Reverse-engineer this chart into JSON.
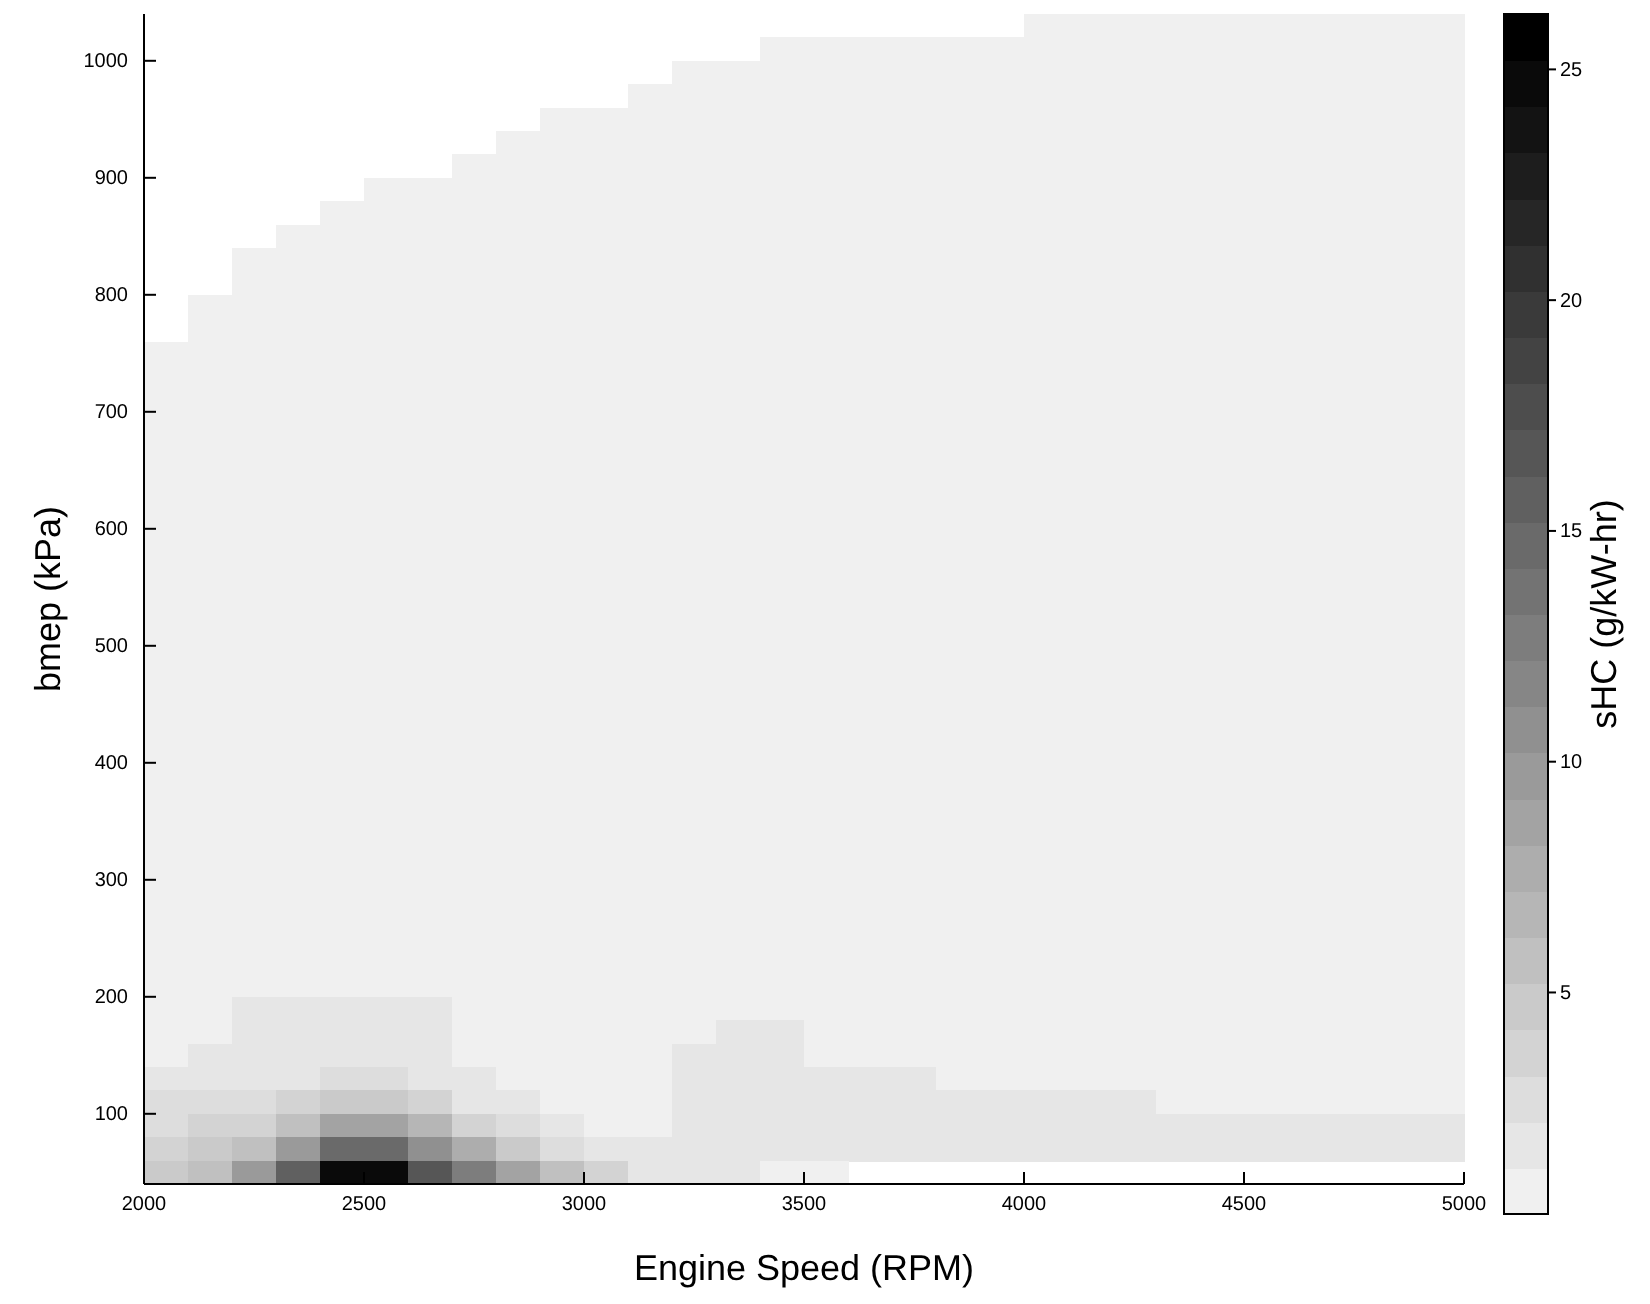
{
  "chart_data": {
    "type": "heatmap",
    "xlabel": "Engine Speed (RPM)",
    "ylabel": "bmep (kPa)",
    "clabel": "sHC (g/kW-hr)",
    "x": [
      2050,
      2150,
      2250,
      2350,
      2450,
      2550,
      2650,
      2750,
      2850,
      2950,
      3050,
      3150,
      3250,
      3350,
      3450,
      3550,
      3650,
      3750,
      3850,
      3950,
      4050,
      4150,
      4250,
      4350,
      4450,
      4550,
      4650,
      4750,
      4850,
      4950
    ],
    "y": [
      1030,
      1010,
      990,
      970,
      950,
      930,
      910,
      890,
      870,
      850,
      830,
      810,
      790,
      770,
      750,
      730,
      710,
      690,
      670,
      650,
      630,
      610,
      590,
      570,
      550,
      530,
      510,
      490,
      470,
      450,
      430,
      410,
      390,
      370,
      350,
      330,
      310,
      290,
      270,
      250,
      230,
      210,
      190,
      170,
      150,
      130,
      110,
      90,
      70,
      50
    ],
    "xlim": [
      2000,
      5000
    ],
    "xticks": [
      2000,
      2500,
      3000,
      3500,
      4000,
      4500,
      5000
    ],
    "ylim": [
      40,
      1040
    ],
    "yticks": [
      100,
      200,
      300,
      400,
      500,
      600,
      700,
      800,
      900,
      1000
    ],
    "clim": [
      0.2,
      26.2
    ],
    "cticks": [
      5,
      10,
      15,
      20,
      25
    ],
    "cells": [
      [
        null,
        null,
        null,
        null,
        null,
        null,
        null,
        null,
        null,
        null,
        null,
        null,
        null,
        null,
        null,
        null,
        null,
        null,
        null,
        null,
        0.5,
        0.5,
        0.5,
        0.5,
        0.5,
        0.5,
        0.5,
        0.5,
        0.5,
        0.5
      ],
      [
        null,
        null,
        null,
        null,
        null,
        null,
        null,
        null,
        null,
        null,
        null,
        null,
        null,
        null,
        0.5,
        0.5,
        0.5,
        0.5,
        0.5,
        0.5,
        0.5,
        0.5,
        0.5,
        0.5,
        0.5,
        0.5,
        0.5,
        0.5,
        0.5,
        0.5
      ],
      [
        null,
        null,
        null,
        null,
        null,
        null,
        null,
        null,
        null,
        null,
        null,
        null,
        0.5,
        0.5,
        0.5,
        0.5,
        0.5,
        0.5,
        0.5,
        0.5,
        0.5,
        0.5,
        0.5,
        0.5,
        0.5,
        0.5,
        0.5,
        0.5,
        0.5,
        0.5
      ],
      [
        null,
        null,
        null,
        null,
        null,
        null,
        null,
        null,
        null,
        null,
        null,
        0.5,
        0.5,
        0.5,
        0.5,
        0.5,
        0.5,
        0.5,
        0.5,
        0.5,
        0.5,
        0.5,
        0.5,
        0.5,
        0.5,
        0.5,
        0.5,
        0.5,
        0.5,
        0.5
      ],
      [
        null,
        null,
        null,
        null,
        null,
        null,
        null,
        null,
        null,
        0.5,
        0.5,
        0.5,
        0.5,
        0.5,
        0.5,
        0.5,
        0.5,
        0.5,
        0.5,
        0.5,
        0.5,
        0.5,
        0.5,
        0.5,
        0.5,
        0.5,
        0.5,
        0.5,
        0.5,
        0.5
      ],
      [
        null,
        null,
        null,
        null,
        null,
        null,
        null,
        null,
        0.5,
        0.5,
        0.5,
        0.5,
        0.5,
        0.5,
        0.5,
        0.5,
        0.5,
        0.5,
        0.5,
        0.5,
        0.5,
        0.5,
        0.5,
        0.5,
        0.5,
        0.5,
        0.5,
        0.5,
        0.5,
        0.5
      ],
      [
        null,
        null,
        null,
        null,
        null,
        null,
        null,
        0.5,
        0.5,
        0.5,
        0.5,
        0.5,
        0.5,
        0.5,
        0.5,
        0.5,
        0.5,
        0.5,
        0.5,
        0.5,
        0.5,
        0.5,
        0.5,
        0.5,
        0.5,
        0.5,
        0.5,
        0.5,
        0.5,
        0.5
      ],
      [
        null,
        null,
        null,
        null,
        null,
        0.5,
        0.5,
        0.5,
        0.5,
        0.5,
        0.5,
        0.5,
        0.5,
        0.5,
        0.5,
        0.5,
        0.5,
        0.5,
        0.5,
        0.5,
        0.5,
        0.5,
        0.5,
        0.5,
        0.5,
        0.5,
        0.5,
        0.5,
        0.5,
        0.5
      ],
      [
        null,
        null,
        null,
        null,
        0.5,
        0.5,
        0.5,
        0.5,
        0.5,
        0.5,
        0.5,
        0.5,
        0.5,
        0.5,
        0.5,
        0.5,
        0.5,
        0.5,
        0.5,
        0.5,
        0.5,
        0.5,
        0.5,
        0.5,
        0.5,
        0.5,
        0.5,
        0.5,
        0.5,
        0.5
      ],
      [
        null,
        null,
        null,
        0.5,
        0.5,
        0.5,
        0.5,
        0.5,
        0.5,
        0.5,
        0.5,
        0.5,
        0.5,
        0.5,
        0.5,
        0.5,
        0.5,
        0.5,
        0.5,
        0.5,
        0.5,
        0.5,
        0.5,
        0.5,
        0.5,
        0.5,
        0.5,
        0.5,
        0.5,
        0.5
      ],
      [
        null,
        null,
        0.5,
        0.5,
        0.5,
        0.5,
        0.5,
        0.5,
        0.5,
        0.5,
        0.5,
        0.5,
        0.5,
        0.5,
        0.5,
        0.5,
        0.5,
        0.5,
        0.5,
        0.5,
        0.5,
        0.5,
        0.5,
        0.5,
        0.5,
        0.5,
        0.5,
        0.5,
        0.5,
        0.5
      ],
      [
        null,
        null,
        0.5,
        0.5,
        0.5,
        0.5,
        0.5,
        0.5,
        0.5,
        0.5,
        0.5,
        0.5,
        0.5,
        0.5,
        0.5,
        0.5,
        0.5,
        0.5,
        0.5,
        0.5,
        0.5,
        0.5,
        0.5,
        0.5,
        0.5,
        0.5,
        0.5,
        0.5,
        0.5,
        0.5
      ],
      [
        null,
        0.5,
        0.5,
        0.5,
        0.5,
        0.5,
        0.5,
        0.5,
        0.5,
        0.5,
        0.5,
        0.5,
        0.5,
        0.5,
        0.5,
        0.5,
        0.5,
        0.5,
        0.5,
        0.5,
        0.5,
        0.5,
        0.5,
        0.5,
        0.5,
        0.5,
        0.5,
        0.5,
        0.5,
        0.5
      ],
      [
        null,
        0.5,
        0.5,
        0.5,
        0.5,
        0.5,
        0.5,
        0.5,
        0.5,
        0.5,
        0.5,
        0.5,
        0.5,
        0.5,
        0.5,
        0.5,
        0.5,
        0.5,
        0.5,
        0.5,
        0.5,
        0.5,
        0.5,
        0.5,
        0.5,
        0.5,
        0.5,
        0.5,
        0.5,
        0.5
      ],
      [
        0.5,
        0.5,
        0.5,
        0.5,
        0.5,
        0.5,
        0.5,
        0.5,
        0.5,
        0.5,
        0.5,
        0.5,
        0.5,
        0.5,
        0.5,
        0.5,
        0.5,
        0.5,
        0.5,
        0.5,
        0.5,
        0.5,
        0.5,
        0.5,
        0.5,
        0.5,
        0.5,
        0.5,
        0.5,
        0.5
      ],
      [
        0.5,
        0.5,
        0.5,
        0.5,
        0.5,
        0.5,
        0.5,
        0.5,
        0.5,
        0.5,
        0.5,
        0.5,
        0.5,
        0.5,
        0.5,
        0.5,
        0.5,
        0.5,
        0.5,
        0.5,
        0.5,
        0.5,
        0.5,
        0.5,
        0.5,
        0.5,
        0.5,
        0.5,
        0.5,
        0.5
      ],
      [
        0.5,
        0.5,
        0.5,
        0.5,
        0.5,
        0.5,
        0.5,
        0.5,
        0.5,
        0.5,
        0.5,
        0.5,
        0.5,
        0.5,
        0.5,
        0.5,
        0.5,
        0.5,
        0.5,
        0.5,
        0.5,
        0.5,
        0.5,
        0.5,
        0.5,
        0.5,
        0.5,
        0.5,
        0.5,
        0.5
      ],
      [
        0.5,
        0.5,
        0.5,
        0.5,
        0.5,
        0.5,
        0.5,
        0.5,
        0.5,
        0.5,
        0.5,
        0.5,
        0.5,
        0.5,
        0.5,
        0.5,
        0.5,
        0.5,
        0.5,
        0.5,
        0.5,
        0.5,
        0.5,
        0.5,
        0.5,
        0.5,
        0.5,
        0.5,
        0.5,
        0.5
      ],
      [
        0.5,
        0.5,
        0.5,
        0.5,
        0.5,
        0.5,
        0.5,
        0.5,
        0.5,
        0.5,
        0.5,
        0.5,
        0.5,
        0.5,
        0.5,
        0.5,
        0.5,
        0.5,
        0.5,
        0.5,
        0.5,
        0.5,
        0.5,
        0.5,
        0.5,
        0.5,
        0.5,
        0.5,
        0.5,
        0.5
      ],
      [
        0.5,
        0.5,
        0.5,
        0.5,
        0.5,
        0.5,
        0.5,
        0.5,
        0.5,
        0.5,
        0.5,
        0.5,
        0.5,
        0.5,
        0.5,
        0.5,
        0.5,
        0.5,
        0.5,
        0.5,
        0.5,
        0.5,
        0.5,
        0.5,
        0.5,
        0.5,
        0.5,
        0.5,
        0.5,
        0.5
      ],
      [
        0.5,
        0.5,
        0.5,
        0.5,
        0.5,
        0.5,
        0.5,
        0.5,
        0.5,
        0.5,
        0.5,
        0.5,
        0.5,
        0.5,
        0.5,
        0.5,
        0.5,
        0.5,
        0.5,
        0.5,
        0.5,
        0.5,
        0.5,
        0.5,
        0.5,
        0.5,
        0.5,
        0.5,
        0.5,
        0.5
      ],
      [
        0.5,
        0.5,
        0.5,
        0.5,
        0.5,
        0.5,
        0.5,
        0.5,
        0.5,
        0.5,
        0.5,
        0.5,
        0.5,
        0.5,
        0.5,
        0.5,
        0.5,
        0.5,
        0.5,
        0.5,
        0.5,
        0.5,
        0.5,
        0.5,
        0.5,
        0.5,
        0.5,
        0.5,
        0.5,
        0.5
      ],
      [
        0.5,
        0.5,
        0.5,
        0.5,
        0.5,
        0.5,
        0.5,
        0.5,
        0.5,
        0.5,
        0.5,
        0.5,
        0.5,
        0.5,
        0.5,
        0.5,
        0.5,
        0.5,
        0.5,
        0.5,
        0.5,
        0.5,
        0.5,
        0.5,
        0.5,
        0.5,
        0.5,
        0.5,
        0.5,
        0.5
      ],
      [
        0.5,
        0.5,
        0.5,
        0.5,
        0.5,
        0.5,
        0.5,
        0.5,
        0.5,
        0.5,
        0.5,
        0.5,
        0.5,
        0.5,
        0.5,
        0.5,
        0.5,
        0.5,
        0.5,
        0.5,
        0.5,
        0.5,
        0.5,
        0.5,
        0.5,
        0.5,
        0.5,
        0.5,
        0.5,
        0.5
      ],
      [
        0.5,
        0.5,
        0.5,
        0.5,
        0.5,
        0.5,
        0.5,
        0.5,
        0.5,
        0.5,
        0.5,
        0.5,
        0.5,
        0.5,
        0.5,
        0.5,
        0.5,
        0.5,
        0.5,
        0.5,
        0.5,
        0.5,
        0.5,
        0.5,
        0.5,
        0.5,
        0.5,
        0.5,
        0.5,
        0.5
      ],
      [
        0.5,
        0.5,
        0.5,
        0.5,
        0.5,
        0.5,
        0.5,
        0.5,
        0.5,
        0.5,
        0.5,
        0.5,
        0.5,
        0.5,
        0.5,
        0.5,
        0.5,
        0.5,
        0.5,
        0.5,
        0.5,
        0.5,
        0.5,
        0.5,
        0.5,
        0.5,
        0.5,
        0.5,
        0.5,
        0.5
      ],
      [
        0.5,
        0.5,
        0.5,
        0.5,
        0.5,
        0.5,
        0.5,
        0.5,
        0.5,
        0.5,
        0.5,
        0.5,
        0.5,
        0.5,
        0.5,
        0.5,
        0.5,
        0.5,
        0.5,
        0.5,
        0.5,
        0.5,
        0.5,
        0.5,
        0.5,
        0.5,
        0.5,
        0.5,
        0.5,
        0.5
      ],
      [
        0.5,
        0.5,
        0.5,
        0.5,
        0.5,
        0.5,
        0.5,
        0.5,
        0.5,
        0.5,
        0.5,
        0.5,
        0.5,
        0.5,
        0.5,
        0.5,
        0.5,
        0.5,
        0.5,
        0.5,
        0.5,
        0.5,
        0.5,
        0.5,
        0.5,
        0.5,
        0.5,
        0.5,
        0.5,
        0.5
      ],
      [
        0.5,
        0.5,
        0.5,
        0.5,
        0.5,
        0.5,
        0.5,
        0.5,
        0.5,
        0.5,
        0.5,
        0.5,
        0.5,
        0.5,
        0.5,
        0.5,
        0.5,
        0.5,
        0.5,
        0.5,
        0.5,
        0.5,
        0.5,
        0.5,
        0.5,
        0.5,
        0.5,
        0.5,
        0.5,
        0.5
      ],
      [
        0.5,
        0.5,
        0.5,
        0.5,
        0.5,
        0.5,
        0.5,
        0.5,
        0.5,
        0.5,
        0.5,
        0.5,
        0.5,
        0.5,
        0.5,
        0.5,
        0.5,
        0.5,
        0.5,
        0.5,
        0.5,
        0.5,
        0.5,
        0.5,
        0.5,
        0.5,
        0.5,
        0.5,
        0.5,
        0.5
      ],
      [
        0.5,
        0.5,
        0.5,
        0.5,
        0.5,
        0.5,
        0.5,
        0.5,
        0.5,
        0.5,
        0.5,
        0.5,
        0.5,
        0.5,
        0.5,
        0.5,
        0.5,
        0.5,
        0.5,
        0.5,
        0.5,
        0.5,
        0.5,
        0.5,
        0.5,
        0.5,
        0.5,
        0.5,
        0.5,
        0.5
      ],
      [
        0.5,
        0.5,
        0.5,
        0.5,
        0.5,
        0.5,
        0.5,
        0.5,
        0.5,
        0.5,
        0.5,
        0.5,
        0.5,
        0.5,
        0.5,
        0.5,
        0.5,
        0.5,
        0.5,
        0.5,
        0.5,
        0.5,
        0.5,
        0.5,
        0.5,
        0.5,
        0.5,
        0.5,
        0.5,
        0.5
      ],
      [
        0.5,
        0.5,
        0.5,
        0.5,
        0.5,
        0.5,
        0.5,
        0.5,
        0.5,
        0.5,
        0.5,
        0.5,
        0.5,
        0.5,
        0.5,
        0.5,
        0.5,
        0.5,
        0.5,
        0.5,
        0.5,
        0.5,
        0.5,
        0.5,
        0.5,
        0.5,
        0.5,
        0.5,
        0.5,
        0.5
      ],
      [
        0.5,
        0.5,
        0.5,
        0.5,
        0.5,
        0.5,
        0.5,
        0.5,
        0.5,
        0.5,
        0.5,
        0.5,
        0.5,
        0.5,
        0.5,
        0.5,
        0.5,
        0.5,
        0.5,
        0.5,
        0.5,
        0.5,
        0.5,
        0.5,
        0.5,
        0.5,
        0.5,
        0.5,
        0.5,
        0.5
      ],
      [
        0.5,
        0.5,
        0.5,
        0.5,
        0.5,
        0.5,
        0.5,
        0.5,
        0.5,
        0.5,
        0.5,
        0.5,
        0.5,
        0.5,
        0.5,
        0.5,
        0.5,
        0.5,
        0.5,
        0.5,
        0.5,
        0.5,
        0.5,
        0.5,
        0.5,
        0.5,
        0.5,
        0.5,
        0.5,
        0.5
      ],
      [
        0.5,
        0.5,
        0.5,
        0.5,
        0.5,
        0.5,
        0.5,
        0.5,
        0.5,
        0.5,
        0.5,
        0.5,
        0.5,
        0.5,
        0.5,
        0.5,
        0.5,
        0.5,
        0.5,
        0.5,
        0.5,
        0.5,
        0.5,
        0.5,
        0.5,
        0.5,
        0.5,
        0.5,
        0.5,
        0.5
      ],
      [
        0.5,
        0.5,
        0.5,
        0.5,
        0.5,
        0.5,
        0.5,
        0.5,
        0.5,
        0.5,
        0.5,
        0.5,
        0.5,
        0.5,
        0.5,
        0.5,
        0.5,
        0.5,
        0.5,
        0.5,
        0.5,
        0.5,
        0.5,
        0.5,
        0.5,
        0.5,
        0.5,
        0.5,
        0.5,
        0.5
      ],
      [
        0.5,
        0.5,
        0.5,
        0.5,
        0.5,
        0.5,
        0.5,
        0.5,
        0.5,
        0.5,
        0.5,
        0.5,
        0.5,
        0.5,
        0.5,
        0.5,
        0.5,
        0.5,
        0.5,
        0.5,
        0.5,
        0.5,
        0.5,
        0.5,
        0.5,
        0.5,
        0.5,
        0.5,
        0.5,
        0.5
      ],
      [
        0.5,
        0.5,
        0.5,
        0.5,
        0.5,
        0.5,
        0.5,
        0.5,
        0.5,
        0.5,
        0.5,
        0.5,
        0.5,
        0.5,
        0.5,
        0.5,
        0.5,
        0.5,
        0.5,
        0.5,
        0.5,
        0.5,
        0.5,
        0.5,
        0.5,
        0.5,
        0.5,
        0.5,
        0.5,
        0.5
      ],
      [
        0.5,
        0.5,
        0.5,
        0.5,
        0.5,
        0.5,
        0.5,
        0.5,
        0.5,
        0.5,
        0.5,
        0.5,
        0.5,
        0.5,
        0.5,
        0.5,
        0.5,
        0.5,
        0.5,
        0.5,
        0.5,
        0.5,
        0.5,
        0.5,
        0.5,
        0.5,
        0.5,
        0.5,
        0.5,
        0.5
      ],
      [
        0.5,
        0.5,
        0.5,
        0.5,
        0.5,
        0.5,
        0.5,
        0.5,
        0.5,
        0.5,
        0.5,
        0.5,
        0.5,
        0.5,
        0.5,
        0.5,
        0.5,
        0.5,
        0.5,
        0.5,
        0.5,
        0.5,
        0.5,
        0.5,
        0.5,
        0.5,
        0.5,
        0.5,
        0.5,
        0.5
      ],
      [
        0.5,
        0.5,
        0.5,
        0.5,
        0.5,
        0.5,
        0.5,
        0.5,
        0.5,
        0.5,
        0.5,
        0.5,
        0.5,
        0.5,
        0.5,
        0.5,
        0.5,
        0.5,
        0.5,
        0.5,
        0.5,
        0.5,
        0.5,
        0.5,
        0.5,
        0.5,
        0.5,
        0.5,
        0.5,
        0.5
      ],
      [
        0.5,
        0.5,
        1.5,
        1.5,
        1.5,
        1.5,
        1.5,
        0.5,
        0.5,
        0.5,
        0.5,
        0.5,
        0.5,
        0.5,
        0.5,
        0.5,
        0.5,
        0.5,
        0.5,
        0.5,
        0.5,
        0.5,
        0.5,
        0.5,
        0.5,
        0.5,
        0.5,
        0.5,
        0.5,
        0.5
      ],
      [
        0.5,
        0.5,
        1.5,
        1.5,
        1.5,
        1.5,
        1.5,
        0.5,
        0.5,
        0.5,
        0.5,
        0.5,
        0.5,
        1.5,
        1.5,
        0.5,
        0.5,
        0.5,
        0.5,
        0.5,
        0.5,
        0.5,
        0.5,
        0.5,
        0.5,
        0.5,
        0.5,
        0.5,
        0.5,
        0.5
      ],
      [
        0.5,
        1.5,
        1.5,
        1.5,
        1.5,
        1.5,
        1.5,
        0.5,
        0.5,
        0.5,
        0.5,
        0.5,
        1.5,
        1.5,
        1.5,
        0.5,
        0.5,
        0.5,
        0.5,
        0.5,
        0.5,
        0.5,
        0.5,
        0.5,
        0.5,
        0.5,
        0.5,
        0.5,
        0.5,
        0.5
      ],
      [
        1.5,
        2,
        2,
        2,
        2.5,
        2.5,
        2,
        1.5,
        0.5,
        0.5,
        0.5,
        0.5,
        1.5,
        1.5,
        1.5,
        1.5,
        1.5,
        1.5,
        0.5,
        0.5,
        0.5,
        0.5,
        0.5,
        0.5,
        0.5,
        0.5,
        0.5,
        0.5,
        0.5,
        0.5
      ],
      [
        2.5,
        2.5,
        3,
        3.5,
        5,
        5,
        3.5,
        2,
        1.5,
        0.5,
        0.5,
        0.5,
        1.5,
        1.5,
        1.5,
        1.5,
        1.5,
        1.5,
        1.5,
        1.5,
        1.5,
        1.5,
        1.5,
        0.5,
        0.5,
        0.5,
        0.5,
        0.5,
        0.5,
        0.5
      ],
      [
        3,
        3.5,
        4,
        6,
        9,
        9,
        6.5,
        4,
        2.5,
        1.5,
        0.5,
        0.5,
        1.5,
        1.5,
        1.5,
        1.5,
        1.5,
        1.5,
        1.5,
        1.5,
        1.5,
        1.5,
        1.5,
        1.5,
        1.5,
        1.5,
        1.5,
        1.5,
        1.5,
        1.5
      ],
      [
        4,
        4.5,
        6,
        10,
        15,
        15,
        11,
        8,
        5,
        3,
        2,
        1.5,
        1.5,
        1.5,
        1.5,
        1.5,
        1.5,
        1.5,
        1.5,
        1.5,
        1.5,
        1.5,
        1.5,
        1.5,
        1.5,
        1.5,
        1.5,
        1.5,
        1.5,
        1.5
      ],
      [
        5,
        6,
        10,
        16,
        25,
        25,
        17,
        13,
        9,
        6,
        3.5,
        2,
        1.5,
        1.2,
        1,
        1,
        null,
        null,
        null,
        null,
        null,
        null,
        null,
        null,
        null,
        null,
        null,
        null,
        null,
        null
      ]
    ]
  }
}
